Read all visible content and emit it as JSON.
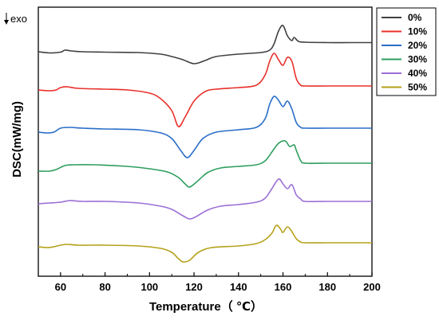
{
  "chart_data": {
    "type": "line",
    "xlabel": "Temperature（ ℃）",
    "ylabel": "DSC(mW/mg)",
    "xlim": [
      50,
      200
    ],
    "x_ticks": [
      60,
      80,
      100,
      120,
      140,
      160,
      180,
      200
    ],
    "y_ticks": [],
    "exo_label": "exo",
    "grid": false,
    "legend_placement": "top-right",
    "curve_shape": "Stacked DSC thermograms (arbitrary offsets): each curve has a crystallization exotherm (downward) near 112-120 °C and a melting endotherm (upward) with one or two peaks near 155-165 °C; values are relative heat-flow readings (arbitrary units).",
    "series": [
      {
        "name": "0%",
        "color": "#404040",
        "points": [
          [
            50,
            56
          ],
          [
            55,
            57.5
          ],
          [
            60,
            56.5
          ],
          [
            62,
            54
          ],
          [
            65,
            55
          ],
          [
            70,
            56
          ],
          [
            80,
            56.5
          ],
          [
            95,
            57
          ],
          [
            105,
            59
          ],
          [
            110,
            62
          ],
          [
            115,
            66
          ],
          [
            120,
            71
          ],
          [
            125,
            67
          ],
          [
            130,
            62
          ],
          [
            140,
            59
          ],
          [
            150,
            57
          ],
          [
            154,
            54
          ],
          [
            156,
            46
          ],
          [
            158,
            30
          ],
          [
            160,
            23
          ],
          [
            162,
            36
          ],
          [
            164,
            42
          ],
          [
            165,
            38
          ],
          [
            167,
            43
          ],
          [
            170,
            44
          ],
          [
            180,
            44.5
          ],
          [
            190,
            44.5
          ],
          [
            200,
            44.5
          ]
        ]
      },
      {
        "name": "10%",
        "color": "#e8302a",
        "points": [
          [
            50,
            104
          ],
          [
            55,
            105
          ],
          [
            58,
            104
          ],
          [
            60,
            101
          ],
          [
            63,
            100
          ],
          [
            68,
            102
          ],
          [
            80,
            103
          ],
          [
            90,
            104
          ],
          [
            100,
            108
          ],
          [
            105,
            115
          ],
          [
            110,
            130
          ],
          [
            113,
            150
          ],
          [
            116,
            138
          ],
          [
            120,
            118
          ],
          [
            125,
            106
          ],
          [
            130,
            103
          ],
          [
            140,
            101
          ],
          [
            148,
            98
          ],
          [
            152,
            85
          ],
          [
            154,
            68
          ],
          [
            156,
            58
          ],
          [
            158,
            66
          ],
          [
            160,
            73
          ],
          [
            162,
            63
          ],
          [
            164,
            68
          ],
          [
            166,
            90
          ],
          [
            168,
            98
          ],
          [
            170,
            99
          ],
          [
            180,
            99
          ],
          [
            190,
            99
          ],
          [
            200,
            99
          ]
        ]
      },
      {
        "name": "20%",
        "color": "#2a6ec8",
        "points": [
          [
            50,
            157
          ],
          [
            54,
            158
          ],
          [
            57,
            157
          ],
          [
            60,
            152
          ],
          [
            64,
            151
          ],
          [
            70,
            152
          ],
          [
            80,
            153
          ],
          [
            95,
            154
          ],
          [
            105,
            158
          ],
          [
            110,
            165
          ],
          [
            114,
            180
          ],
          [
            117,
            189
          ],
          [
            120,
            180
          ],
          [
            124,
            165
          ],
          [
            130,
            157
          ],
          [
            140,
            154
          ],
          [
            148,
            151
          ],
          [
            152,
            140
          ],
          [
            154,
            122
          ],
          [
            156,
            112
          ],
          [
            158,
            117
          ],
          [
            160,
            125
          ],
          [
            162,
            118
          ],
          [
            164,
            128
          ],
          [
            166,
            145
          ],
          [
            168,
            151
          ],
          [
            170,
            152
          ],
          [
            180,
            152
          ],
          [
            190,
            152
          ],
          [
            200,
            152
          ]
        ]
      },
      {
        "name": "30%",
        "color": "#2e9e5e",
        "points": [
          [
            50,
            206
          ],
          [
            55,
            206
          ],
          [
            58,
            204
          ],
          [
            62,
            199
          ],
          [
            66,
            198
          ],
          [
            75,
            198
          ],
          [
            90,
            200
          ],
          [
            100,
            203
          ],
          [
            108,
            207
          ],
          [
            113,
            214
          ],
          [
            116,
            222
          ],
          [
            118,
            226
          ],
          [
            121,
            220
          ],
          [
            126,
            208
          ],
          [
            132,
            202
          ],
          [
            140,
            200
          ],
          [
            148,
            198
          ],
          [
            152,
            193
          ],
          [
            155,
            182
          ],
          [
            158,
            171
          ],
          [
            161,
            168
          ],
          [
            163,
            175
          ],
          [
            165,
            173
          ],
          [
            166,
            180
          ],
          [
            168,
            193
          ],
          [
            170,
            196
          ],
          [
            180,
            196
          ],
          [
            190,
            196
          ],
          [
            200,
            196
          ]
        ]
      },
      {
        "name": "40%",
        "color": "#9b6fd6",
        "points": [
          [
            50,
            247
          ],
          [
            55,
            246
          ],
          [
            60,
            245
          ],
          [
            64,
            243
          ],
          [
            70,
            244
          ],
          [
            80,
            244
          ],
          [
            95,
            246
          ],
          [
            105,
            250
          ],
          [
            110,
            254
          ],
          [
            115,
            262
          ],
          [
            118,
            266
          ],
          [
            121,
            263
          ],
          [
            126,
            255
          ],
          [
            132,
            250
          ],
          [
            140,
            248
          ],
          [
            148,
            245
          ],
          [
            152,
            240
          ],
          [
            155,
            228
          ],
          [
            158,
            216
          ],
          [
            160,
            222
          ],
          [
            162,
            228
          ],
          [
            164,
            223
          ],
          [
            166,
            236
          ],
          [
            168,
            241
          ],
          [
            170,
            244
          ],
          [
            180,
            244
          ],
          [
            190,
            244
          ],
          [
            200,
            244
          ]
        ]
      },
      {
        "name": "50%",
        "color": "#b5a21a",
        "points": [
          [
            50,
            301
          ],
          [
            54,
            302
          ],
          [
            57,
            301
          ],
          [
            60,
            299
          ],
          [
            63,
            298
          ],
          [
            68,
            299
          ],
          [
            80,
            299
          ],
          [
            95,
            300
          ],
          [
            105,
            303
          ],
          [
            110,
            308
          ],
          [
            113,
            316
          ],
          [
            115,
            320
          ],
          [
            118,
            318
          ],
          [
            122,
            308
          ],
          [
            128,
            302
          ],
          [
            140,
            300
          ],
          [
            148,
            297
          ],
          [
            152,
            292
          ],
          [
            155,
            284
          ],
          [
            157,
            274
          ],
          [
            159,
            279
          ],
          [
            160,
            283
          ],
          [
            162,
            276
          ],
          [
            164,
            282
          ],
          [
            166,
            291
          ],
          [
            168,
            295
          ],
          [
            170,
            296
          ],
          [
            180,
            296
          ],
          [
            190,
            296
          ],
          [
            200,
            296
          ]
        ]
      }
    ]
  }
}
